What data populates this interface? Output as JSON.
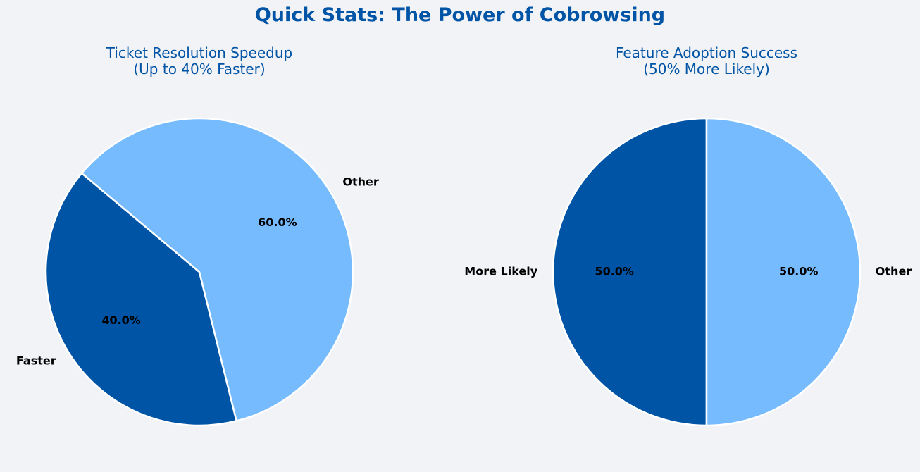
{
  "figure": {
    "title": "Quick Stats: The Power of Cobrowsing",
    "title_color": "#0054a6"
  },
  "colors": {
    "dark_blue": "#0054a6",
    "light_blue": "#76bbfd",
    "background": "#f2f3f7",
    "edge": "#ffffff"
  },
  "chart_data": [
    {
      "type": "pie",
      "title": "Ticket Resolution Speedup\n(Up to 40% Faster)",
      "categories": [
        "Faster",
        "Other"
      ],
      "values": [
        40,
        60
      ],
      "percent_labels": [
        "40.0%",
        "60.0%"
      ],
      "colors": [
        "#0054a6",
        "#76bbfd"
      ],
      "start_angle": 140,
      "direction": "counterclockwise"
    },
    {
      "type": "pie",
      "title": "Feature Adoption Success\n(50% More Likely)",
      "categories": [
        "More Likely",
        "Other"
      ],
      "values": [
        50,
        50
      ],
      "percent_labels": [
        "50.0%",
        "50.0%"
      ],
      "colors": [
        "#0054a6",
        "#76bbfd"
      ],
      "start_angle": 90,
      "direction": "counterclockwise"
    }
  ]
}
